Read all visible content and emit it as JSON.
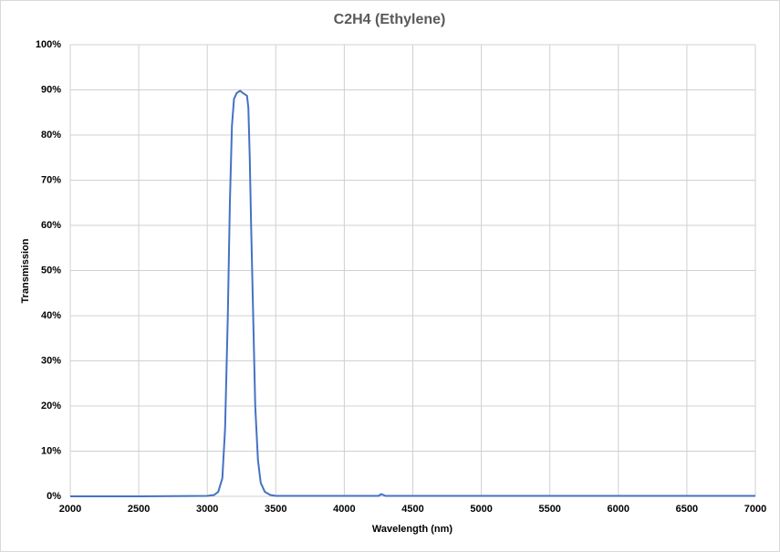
{
  "chart_data": {
    "type": "line",
    "title": "C2H4 (Ethylene)",
    "x_label": "Wavelength (nm)",
    "y_label": "Transmission",
    "x": [
      2000,
      2500,
      3000,
      3050,
      3080,
      3110,
      3130,
      3150,
      3165,
      3180,
      3195,
      3215,
      3240,
      3260,
      3290,
      3300,
      3310,
      3320,
      3335,
      3350,
      3370,
      3390,
      3420,
      3460,
      3500,
      4000,
      4250,
      4270,
      4300,
      5000,
      6000,
      7000
    ],
    "values": [
      0,
      0,
      0.1,
      0.3,
      1,
      4,
      15,
      40,
      65,
      82,
      88,
      89.3,
      89.8,
      89.3,
      88.7,
      86,
      75,
      60,
      40,
      20,
      8,
      3,
      1,
      0.3,
      0.1,
      0.1,
      0.1,
      0.5,
      0.1,
      0.1,
      0.1,
      0.1
    ],
    "color": "#4472c4",
    "xlim": [
      2000,
      7000
    ],
    "xticks": [
      2000,
      2500,
      3000,
      3500,
      4000,
      4500,
      5000,
      5500,
      6000,
      6500,
      7000
    ],
    "ylim": [
      0,
      100
    ],
    "yticks": [
      {
        "value": 0,
        "label": "0%"
      },
      {
        "value": 10,
        "label": "10%"
      },
      {
        "value": 20,
        "label": "20%"
      },
      {
        "value": 30,
        "label": "30%"
      },
      {
        "value": 40,
        "label": "40%"
      },
      {
        "value": 50,
        "label": "50%"
      },
      {
        "value": 60,
        "label": "60%"
      },
      {
        "value": 70,
        "label": "70%"
      },
      {
        "value": 80,
        "label": "80%"
      },
      {
        "value": 90,
        "label": "90%"
      },
      {
        "value": 100,
        "label": "100%"
      }
    ],
    "grid": true
  }
}
